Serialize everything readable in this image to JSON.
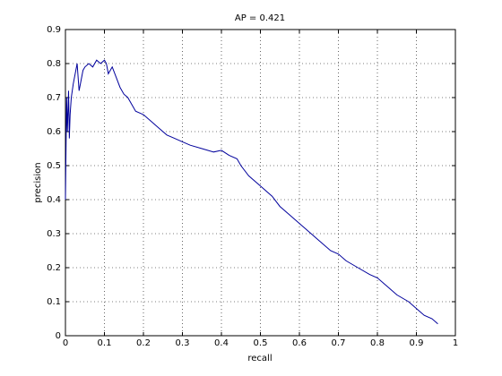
{
  "chart_data": {
    "type": "line",
    "title": "AP = 0.421",
    "xlabel": "recall",
    "ylabel": "precision",
    "x": [
      0,
      0.003,
      0.005,
      0.008,
      0.01,
      0.012,
      0.015,
      0.02,
      0.025,
      0.03,
      0.035,
      0.04,
      0.045,
      0.05,
      0.06,
      0.07,
      0.08,
      0.09,
      0.1,
      0.105,
      0.11,
      0.12,
      0.13,
      0.14,
      0.15,
      0.16,
      0.17,
      0.18,
      0.2,
      0.22,
      0.24,
      0.26,
      0.28,
      0.3,
      0.32,
      0.35,
      0.38,
      0.4,
      0.42,
      0.44,
      0.45,
      0.47,
      0.5,
      0.53,
      0.55,
      0.58,
      0.6,
      0.63,
      0.65,
      0.68,
      0.7,
      0.72,
      0.75,
      0.78,
      0.8,
      0.83,
      0.85,
      0.88,
      0.9,
      0.92,
      0.94,
      0.955
    ],
    "series": [
      {
        "color": "#00009c",
        "values": [
          0.4,
          0.7,
          0.6,
          0.72,
          0.58,
          0.65,
          0.7,
          0.74,
          0.77,
          0.8,
          0.72,
          0.75,
          0.78,
          0.79,
          0.8,
          0.79,
          0.81,
          0.8,
          0.81,
          0.8,
          0.77,
          0.79,
          0.76,
          0.73,
          0.71,
          0.7,
          0.68,
          0.66,
          0.65,
          0.63,
          0.61,
          0.59,
          0.58,
          0.57,
          0.56,
          0.55,
          0.54,
          0.545,
          0.53,
          0.52,
          0.5,
          0.47,
          0.44,
          0.41,
          0.38,
          0.35,
          0.33,
          0.3,
          0.28,
          0.25,
          0.24,
          0.22,
          0.2,
          0.18,
          0.17,
          0.14,
          0.12,
          0.1,
          0.08,
          0.06,
          0.05,
          0.035
        ]
      }
    ],
    "xlim": [
      0,
      1
    ],
    "xticks": [
      0,
      0.1,
      0.2,
      0.3,
      0.4,
      0.5,
      0.6,
      0.7,
      0.8,
      0.9,
      1
    ],
    "ylim": [
      0,
      0.9
    ],
    "yticks": [
      0,
      0.1,
      0.2,
      0.3,
      0.4,
      0.5,
      0.6,
      0.7,
      0.8,
      0.9
    ],
    "grid": true
  }
}
